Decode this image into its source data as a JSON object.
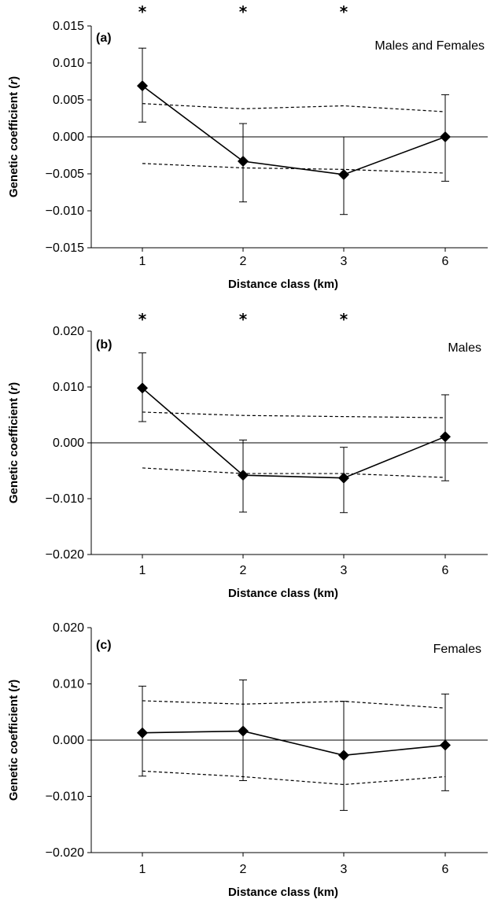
{
  "chart_data": [
    {
      "type": "line",
      "panel_label": "(a)",
      "title": "Males and Females",
      "xlabel": "Distance class (km)",
      "ylabel": "Genetic coefficient (r)",
      "ylim": [
        -0.015,
        0.015
      ],
      "yticks": [
        "0.015",
        "0.010",
        "0.005",
        "0.000",
        "-0.005",
        "-0.010",
        "-0.015"
      ],
      "categories": [
        "1",
        "2",
        "3",
        "6"
      ],
      "significance": [
        "*",
        "*",
        "*",
        ""
      ],
      "series": [
        {
          "values": [
            0.0069,
            -0.0033,
            -0.0051,
            0.0
          ],
          "error_low": [
            0.002,
            -0.0088,
            -0.0105,
            -0.006
          ],
          "error_high": [
            0.012,
            0.0018,
            0.0,
            0.0057
          ]
        },
        {
          "values": [
            0.0045,
            0.0038,
            0.0042,
            0.0034
          ]
        },
        {
          "values": [
            -0.0036,
            -0.0042,
            -0.0044,
            -0.0049
          ]
        }
      ]
    },
    {
      "type": "line",
      "panel_label": "(b)",
      "title": "Males",
      "xlabel": "Distance class (km)",
      "ylabel": "Genetic coefficient (r)",
      "ylim": [
        -0.02,
        0.02
      ],
      "yticks": [
        "0.020",
        "0.010",
        "0.000",
        "-0.010",
        "-0.020"
      ],
      "categories": [
        "1",
        "2",
        "3",
        "6"
      ],
      "significance": [
        "*",
        "*",
        "*",
        ""
      ],
      "series": [
        {
          "values": [
            0.0098,
            -0.0058,
            -0.0063,
            0.0011
          ],
          "error_low": [
            0.0038,
            -0.0124,
            -0.0125,
            -0.0068
          ],
          "error_high": [
            0.0161,
            0.0005,
            -0.0008,
            0.0086
          ]
        },
        {
          "values": [
            0.0055,
            0.0049,
            0.0047,
            0.0045
          ]
        },
        {
          "values": [
            -0.0045,
            -0.0055,
            -0.0055,
            -0.0062
          ]
        }
      ]
    },
    {
      "type": "line",
      "panel_label": "(c)",
      "title": "Females",
      "xlabel": "Distance class (km)",
      "ylabel": "Genetic coefficient (r)",
      "ylim": [
        -0.02,
        0.02
      ],
      "yticks": [
        "0.020",
        "0.010",
        "0.000",
        "-0.010",
        "-0.020"
      ],
      "categories": [
        "1",
        "2",
        "3",
        "6"
      ],
      "significance": [
        "",
        "",
        "",
        ""
      ],
      "series": [
        {
          "values": [
            0.0013,
            0.0016,
            -0.0027,
            -0.0009
          ],
          "error_low": [
            -0.0064,
            -0.0072,
            -0.0125,
            -0.009
          ],
          "error_high": [
            0.0096,
            0.0107,
            0.0069,
            0.0082
          ]
        },
        {
          "values": [
            0.007,
            0.0064,
            0.0069,
            0.0057
          ]
        },
        {
          "values": [
            -0.0055,
            -0.0065,
            -0.0079,
            -0.0065
          ]
        }
      ]
    }
  ]
}
